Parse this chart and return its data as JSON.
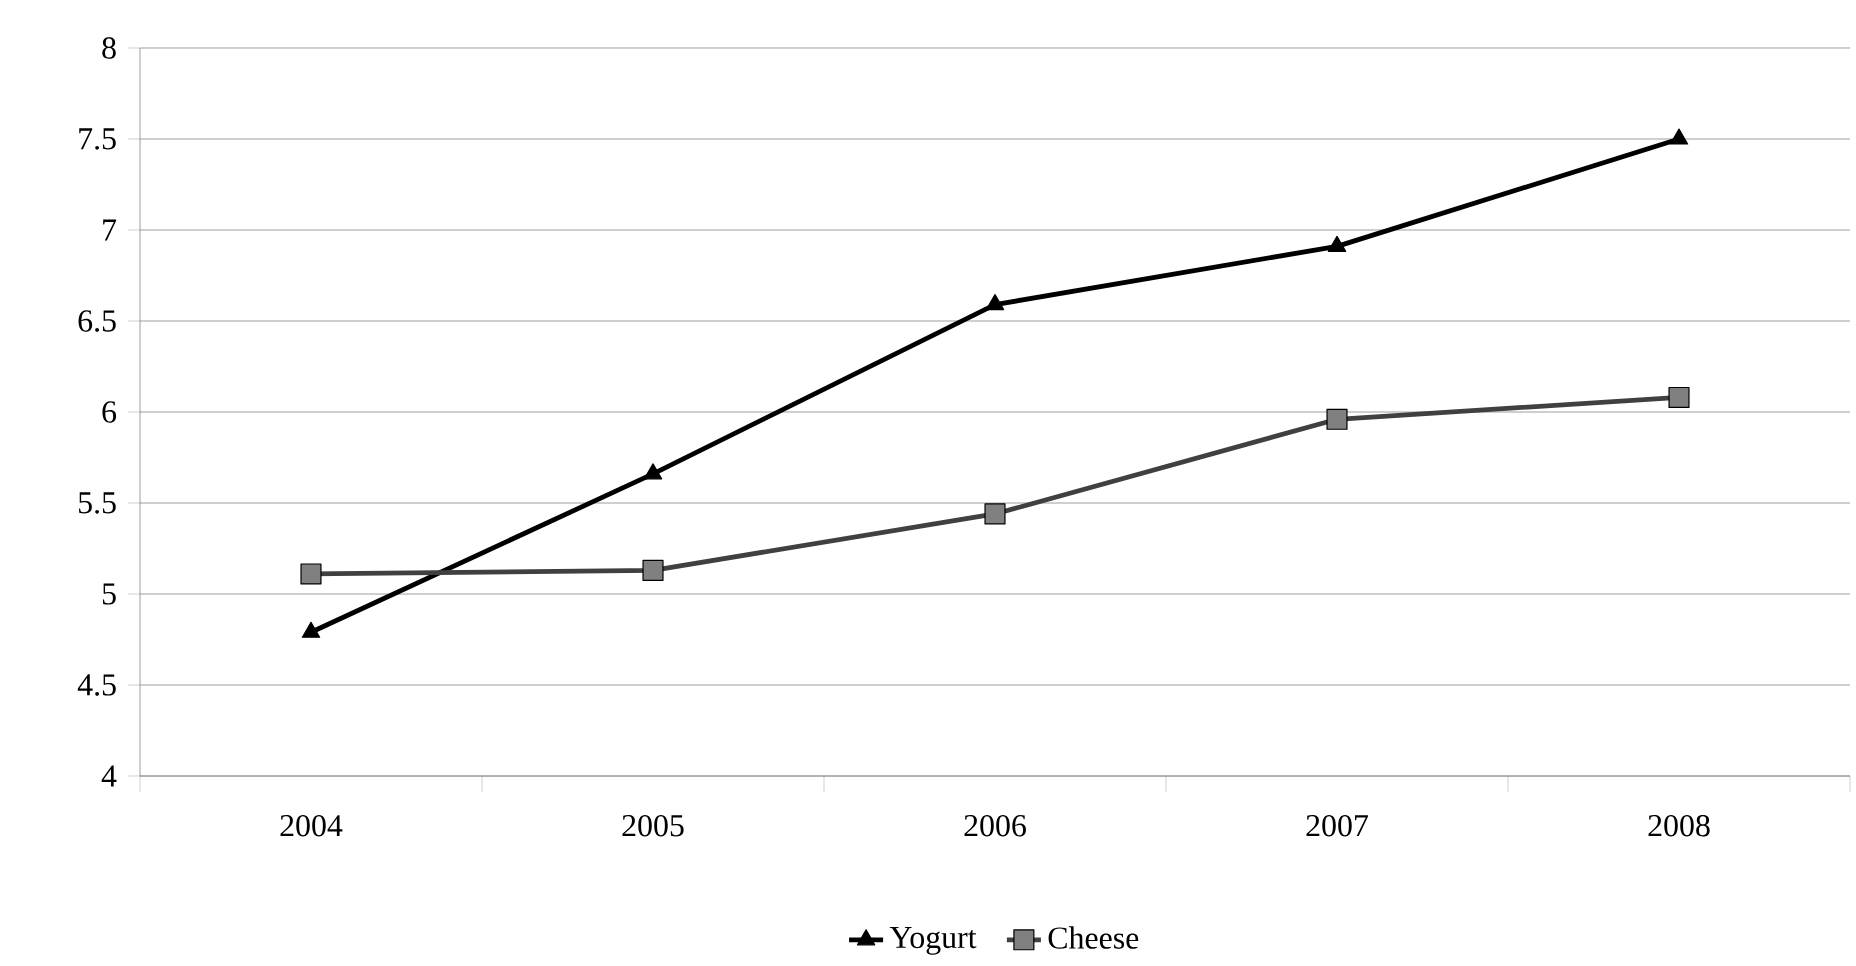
{
  "chart_data": {
    "type": "line",
    "categories": [
      "2004",
      "2005",
      "2006",
      "2007",
      "2008"
    ],
    "series": [
      {
        "name": "Yogurt",
        "color": "#000000",
        "marker": "triangle",
        "values": [
          4.79,
          5.66,
          6.59,
          6.91,
          7.5
        ]
      },
      {
        "name": "Cheese",
        "color": "#404040",
        "marker": "square",
        "values": [
          5.11,
          5.13,
          5.44,
          5.96,
          6.08
        ]
      }
    ],
    "ylim": [
      4,
      8
    ],
    "yticks": [
      4,
      4.5,
      5,
      5.5,
      6,
      6.5,
      7,
      7.5,
      8
    ],
    "grid": "y",
    "legend": "bottom",
    "line_style": "solid"
  }
}
